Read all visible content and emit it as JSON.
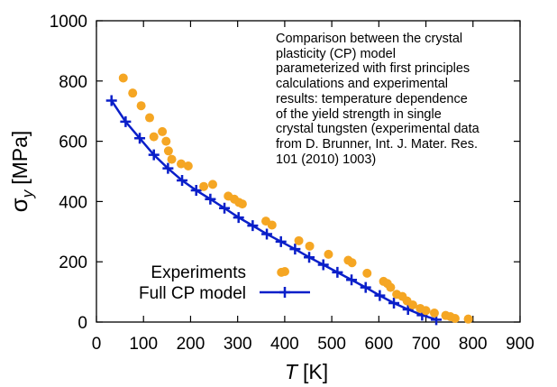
{
  "chart_data": {
    "type": "scatter",
    "xlabel": {
      "symbol": "T",
      "unit": "[K]"
    },
    "ylabel": {
      "symbol": "σ",
      "subscript": "y",
      "unit": "[MPa]"
    },
    "xlim": [
      0,
      900
    ],
    "ylim": [
      0,
      1000
    ],
    "xticks": [
      "0",
      "100",
      "200",
      "300",
      "400",
      "500",
      "600",
      "700",
      "800",
      "900"
    ],
    "yticks": [
      "0",
      "200",
      "400",
      "600",
      "800",
      "1000"
    ],
    "grid": false,
    "legend_position": "bottom-left",
    "annotation_lines": [
      "Comparison between the crystal",
      "plasticity (CP) model",
      "parameterized with first principles",
      "calculations and experimental",
      "results: temperature dependence",
      "of the yield strength in single",
      "crystal tungsten (experimental data",
      "from D. Brunner, Int. J. Mater. Res.",
      "101 (2010) 1003)"
    ],
    "series": [
      {
        "name": "Experiments",
        "kind": "scatter",
        "color": "#f5a623",
        "x": [
          57,
          77,
          95,
          113,
          122,
          140,
          148,
          153,
          160,
          180,
          195,
          228,
          247,
          280,
          293,
          303,
          310,
          360,
          373,
          393,
          430,
          453,
          493,
          535,
          543,
          575,
          610,
          618,
          625,
          638,
          650,
          660,
          672,
          688,
          700,
          718,
          742,
          752,
          762,
          790
        ],
        "y": [
          810,
          760,
          718,
          678,
          615,
          632,
          600,
          568,
          540,
          525,
          518,
          450,
          457,
          418,
          408,
          397,
          392,
          335,
          322,
          165,
          270,
          252,
          225,
          205,
          197,
          162,
          135,
          128,
          115,
          92,
          85,
          70,
          57,
          45,
          38,
          30,
          22,
          18,
          12,
          10
        ]
      },
      {
        "name": "Full CP model",
        "kind": "line",
        "color": "#0a1fc9",
        "x": [
          32,
          62,
          92,
          122,
          152,
          182,
          212,
          242,
          272,
          302,
          332,
          362,
          392,
          422,
          452,
          482,
          512,
          542,
          572,
          602,
          632,
          662,
          692,
          722
        ],
        "y": [
          735,
          665,
          610,
          555,
          510,
          470,
          437,
          408,
          378,
          347,
          320,
          292,
          267,
          242,
          215,
          190,
          165,
          140,
          115,
          88,
          63,
          42,
          23,
          8
        ]
      }
    ]
  }
}
